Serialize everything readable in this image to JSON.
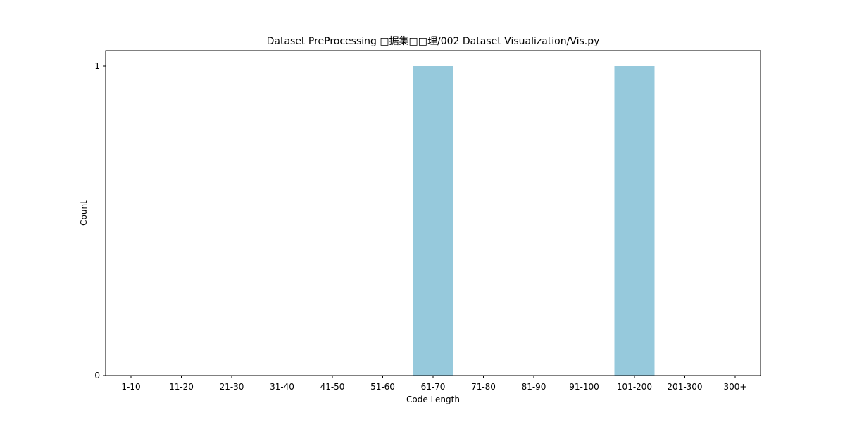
{
  "chart_data": {
    "type": "bar",
    "title": "Dataset PreProcessing □据集□□理/002 Dataset Visualization/Vis.py",
    "xlabel": "Code Length",
    "ylabel": "Count",
    "categories": [
      "1-10",
      "11-20",
      "21-30",
      "31-40",
      "41-50",
      "51-60",
      "61-70",
      "71-80",
      "81-90",
      "91-100",
      "101-200",
      "201-300",
      "300+"
    ],
    "values": [
      0,
      0,
      0,
      0,
      0,
      0,
      1,
      0,
      0,
      0,
      1,
      0,
      0
    ],
    "ylim": [
      0,
      1
    ],
    "yticks": [
      0,
      1
    ],
    "bar_color": "#96c9dc",
    "grid": false,
    "legend": "none"
  }
}
